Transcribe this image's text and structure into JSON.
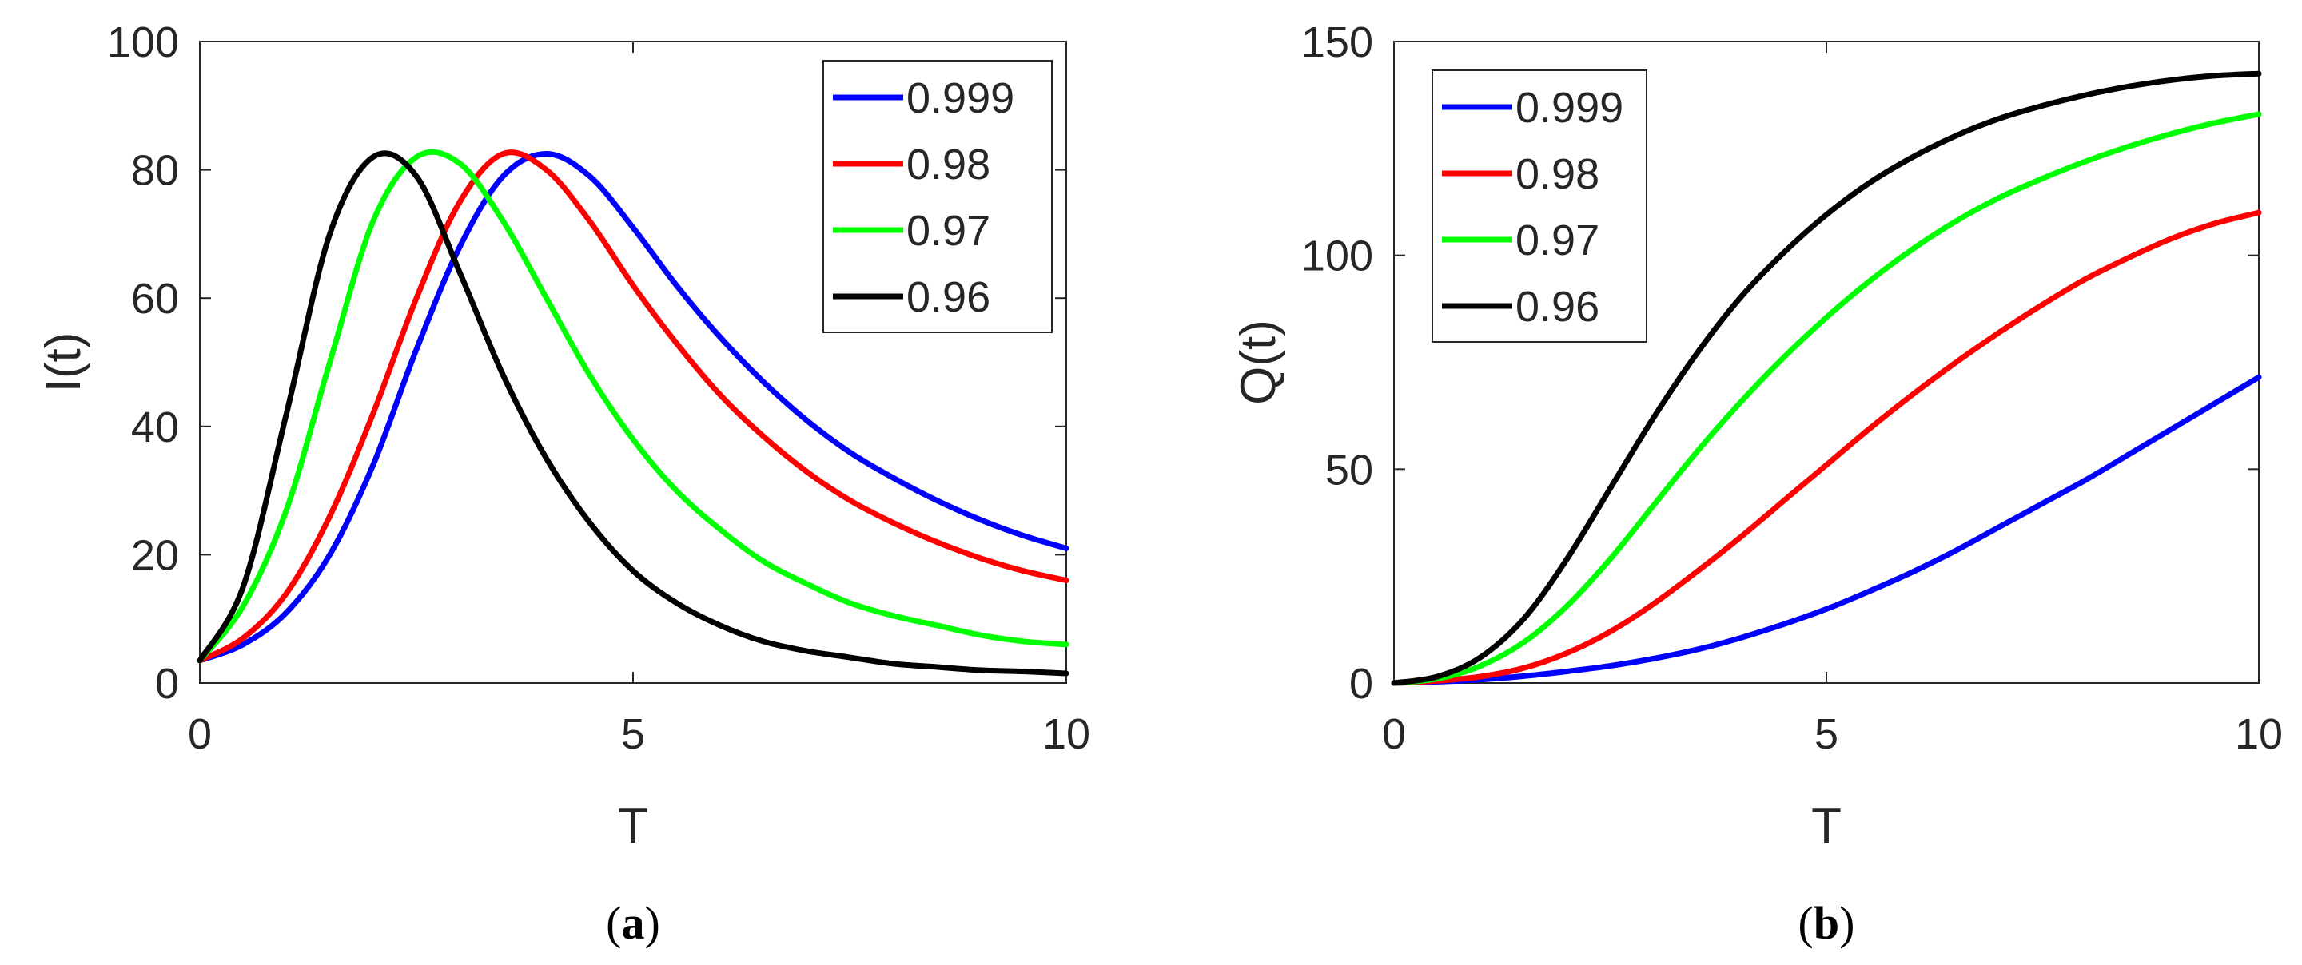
{
  "chart_data": [
    {
      "type": "line",
      "panel": "a",
      "caption": {
        "open": "(",
        "letter": "a",
        "close": ")"
      },
      "xlabel": "T",
      "ylabel": "I(t)",
      "xlim": [
        0,
        10
      ],
      "ylim": [
        0,
        100
      ],
      "xticks": [
        0,
        5,
        10
      ],
      "yticks": [
        0,
        20,
        40,
        60,
        80,
        100
      ],
      "legend_position": "top-right",
      "x": [
        0,
        0.5,
        1,
        1.5,
        2,
        2.5,
        3,
        3.5,
        4,
        4.5,
        5,
        5.5,
        6,
        6.5,
        7,
        7.5,
        8,
        8.5,
        9,
        9.5,
        10
      ],
      "series": [
        {
          "name": "0.999",
          "color": "#0000ff",
          "values": [
            3.5,
            6,
            11,
            20,
            34,
            52,
            68,
            79,
            82.5,
            79,
            71,
            62,
            54,
            47,
            41,
            36,
            32,
            28.5,
            25.5,
            23,
            21
          ]
        },
        {
          "name": "0.98",
          "color": "#ff0000",
          "values": [
            3.5,
            7,
            14,
            26,
            42,
            60,
            75,
            82.5,
            80,
            72,
            62,
            53,
            45,
            38.5,
            33,
            28.5,
            25,
            22,
            19.5,
            17.5,
            16
          ]
        },
        {
          "name": "0.97",
          "color": "#00ff00",
          "values": [
            3.5,
            12,
            27,
            50,
            72,
            82,
            81,
            72,
            60,
            48,
            38,
            30,
            24,
            19,
            15.5,
            12.5,
            10.5,
            9,
            7.5,
            6.5,
            6
          ]
        },
        {
          "name": "0.96",
          "color": "#000000",
          "values": [
            3.5,
            15,
            42,
            70,
            82,
            79,
            64,
            48,
            35,
            25,
            17.5,
            12.5,
            9,
            6.5,
            5,
            4,
            3,
            2.5,
            2,
            1.8,
            1.5
          ]
        }
      ]
    },
    {
      "type": "line",
      "panel": "b",
      "caption": {
        "open": "(",
        "letter": "b",
        "close": ")"
      },
      "xlabel": "T",
      "ylabel": "Q(t)",
      "xlim": [
        0,
        10
      ],
      "ylim": [
        0,
        150
      ],
      "xticks": [
        0,
        5,
        10
      ],
      "yticks": [
        0,
        50,
        100,
        150
      ],
      "legend_position": "top-left",
      "x": [
        0,
        0.5,
        1,
        1.5,
        2,
        2.5,
        3,
        3.5,
        4,
        4.5,
        5,
        5.5,
        6,
        6.5,
        7,
        7.5,
        8,
        8.5,
        9,
        9.5,
        10
      ],
      "series": [
        {
          "name": "0.999",
          "color": "#0000ff",
          "values": [
            0,
            0.3,
            0.8,
            1.6,
            2.7,
            4,
            5.7,
            7.8,
            10.5,
            13.7,
            17.3,
            21.5,
            26,
            31,
            36.5,
            42,
            47.5,
            53.5,
            59.5,
            65.5,
            71.5
          ]
        },
        {
          "name": "0.98",
          "color": "#ff0000",
          "values": [
            0,
            0.5,
            1.5,
            3.5,
            7,
            12,
            18.5,
            26,
            34,
            42.5,
            51,
            59.5,
            67.5,
            75,
            82,
            88.5,
            94.5,
            99.5,
            104,
            107.5,
            110
          ]
        },
        {
          "name": "0.97",
          "color": "#00ff00",
          "values": [
            0,
            1,
            4,
            9.5,
            18,
            29,
            41.5,
            54,
            65.5,
            76,
            85.5,
            94,
            101.5,
            108,
            113.5,
            118,
            122,
            125.5,
            128.5,
            131,
            133
          ]
        },
        {
          "name": "0.96",
          "color": "#000000",
          "values": [
            0,
            1.5,
            6,
            15,
            29,
            45.5,
            62,
            77,
            90,
            100.5,
            109.5,
            117,
            123,
            128,
            132,
            135,
            137.5,
            139.5,
            141,
            142,
            142.5
          ]
        }
      ]
    }
  ]
}
